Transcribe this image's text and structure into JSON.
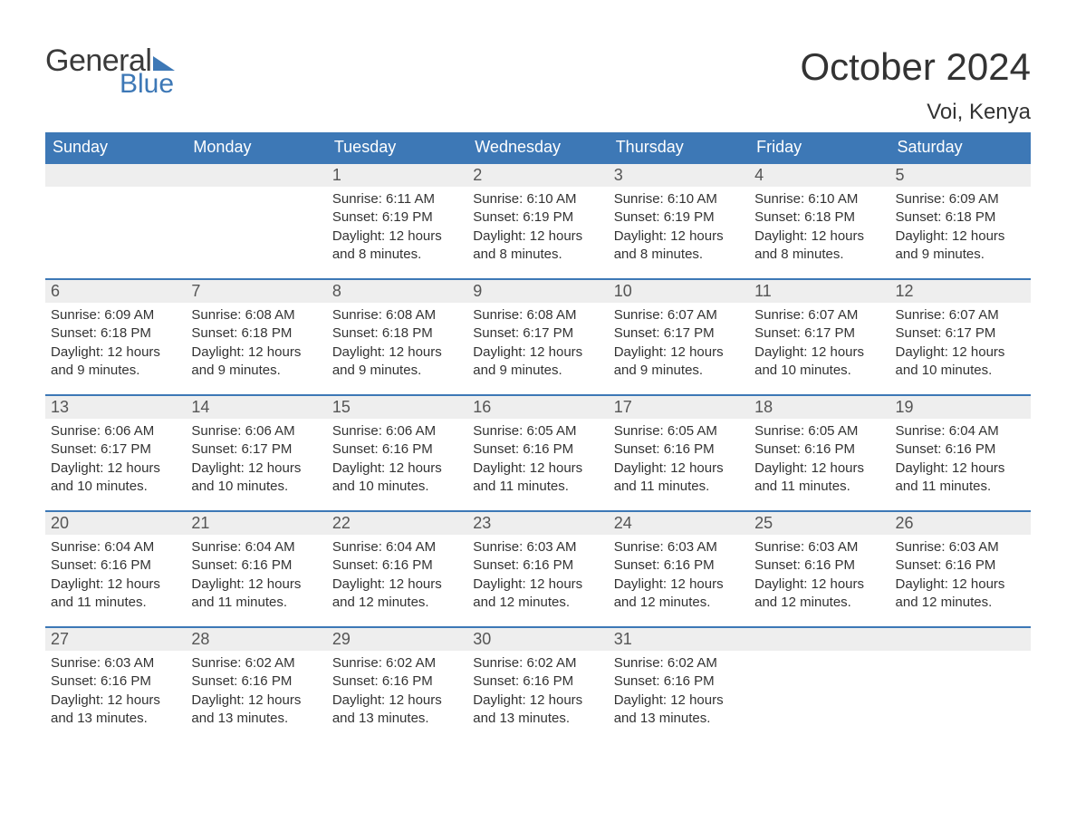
{
  "brand": {
    "word1": "General",
    "word2": "Blue",
    "accent_color": "#3d78b6",
    "text_color": "#3a3a3a"
  },
  "header": {
    "title": "October 2024",
    "location": "Voi, Kenya"
  },
  "calendar": {
    "columns": [
      "Sunday",
      "Monday",
      "Tuesday",
      "Wednesday",
      "Thursday",
      "Friday",
      "Saturday"
    ],
    "header_bg": "#3d78b6",
    "header_fg": "#ffffff",
    "daynum_bg": "#eeeeee",
    "row_border_color": "#3d78b6",
    "body_font_size": 15,
    "weeks": [
      [
        null,
        null,
        {
          "n": "1",
          "sunrise": "Sunrise: 6:11 AM",
          "sunset": "Sunset: 6:19 PM",
          "daylight": "Daylight: 12 hours and 8 minutes."
        },
        {
          "n": "2",
          "sunrise": "Sunrise: 6:10 AM",
          "sunset": "Sunset: 6:19 PM",
          "daylight": "Daylight: 12 hours and 8 minutes."
        },
        {
          "n": "3",
          "sunrise": "Sunrise: 6:10 AM",
          "sunset": "Sunset: 6:19 PM",
          "daylight": "Daylight: 12 hours and 8 minutes."
        },
        {
          "n": "4",
          "sunrise": "Sunrise: 6:10 AM",
          "sunset": "Sunset: 6:18 PM",
          "daylight": "Daylight: 12 hours and 8 minutes."
        },
        {
          "n": "5",
          "sunrise": "Sunrise: 6:09 AM",
          "sunset": "Sunset: 6:18 PM",
          "daylight": "Daylight: 12 hours and 9 minutes."
        }
      ],
      [
        {
          "n": "6",
          "sunrise": "Sunrise: 6:09 AM",
          "sunset": "Sunset: 6:18 PM",
          "daylight": "Daylight: 12 hours and 9 minutes."
        },
        {
          "n": "7",
          "sunrise": "Sunrise: 6:08 AM",
          "sunset": "Sunset: 6:18 PM",
          "daylight": "Daylight: 12 hours and 9 minutes."
        },
        {
          "n": "8",
          "sunrise": "Sunrise: 6:08 AM",
          "sunset": "Sunset: 6:18 PM",
          "daylight": "Daylight: 12 hours and 9 minutes."
        },
        {
          "n": "9",
          "sunrise": "Sunrise: 6:08 AM",
          "sunset": "Sunset: 6:17 PM",
          "daylight": "Daylight: 12 hours and 9 minutes."
        },
        {
          "n": "10",
          "sunrise": "Sunrise: 6:07 AM",
          "sunset": "Sunset: 6:17 PM",
          "daylight": "Daylight: 12 hours and 9 minutes."
        },
        {
          "n": "11",
          "sunrise": "Sunrise: 6:07 AM",
          "sunset": "Sunset: 6:17 PM",
          "daylight": "Daylight: 12 hours and 10 minutes."
        },
        {
          "n": "12",
          "sunrise": "Sunrise: 6:07 AM",
          "sunset": "Sunset: 6:17 PM",
          "daylight": "Daylight: 12 hours and 10 minutes."
        }
      ],
      [
        {
          "n": "13",
          "sunrise": "Sunrise: 6:06 AM",
          "sunset": "Sunset: 6:17 PM",
          "daylight": "Daylight: 12 hours and 10 minutes."
        },
        {
          "n": "14",
          "sunrise": "Sunrise: 6:06 AM",
          "sunset": "Sunset: 6:17 PM",
          "daylight": "Daylight: 12 hours and 10 minutes."
        },
        {
          "n": "15",
          "sunrise": "Sunrise: 6:06 AM",
          "sunset": "Sunset: 6:16 PM",
          "daylight": "Daylight: 12 hours and 10 minutes."
        },
        {
          "n": "16",
          "sunrise": "Sunrise: 6:05 AM",
          "sunset": "Sunset: 6:16 PM",
          "daylight": "Daylight: 12 hours and 11 minutes."
        },
        {
          "n": "17",
          "sunrise": "Sunrise: 6:05 AM",
          "sunset": "Sunset: 6:16 PM",
          "daylight": "Daylight: 12 hours and 11 minutes."
        },
        {
          "n": "18",
          "sunrise": "Sunrise: 6:05 AM",
          "sunset": "Sunset: 6:16 PM",
          "daylight": "Daylight: 12 hours and 11 minutes."
        },
        {
          "n": "19",
          "sunrise": "Sunrise: 6:04 AM",
          "sunset": "Sunset: 6:16 PM",
          "daylight": "Daylight: 12 hours and 11 minutes."
        }
      ],
      [
        {
          "n": "20",
          "sunrise": "Sunrise: 6:04 AM",
          "sunset": "Sunset: 6:16 PM",
          "daylight": "Daylight: 12 hours and 11 minutes."
        },
        {
          "n": "21",
          "sunrise": "Sunrise: 6:04 AM",
          "sunset": "Sunset: 6:16 PM",
          "daylight": "Daylight: 12 hours and 11 minutes."
        },
        {
          "n": "22",
          "sunrise": "Sunrise: 6:04 AM",
          "sunset": "Sunset: 6:16 PM",
          "daylight": "Daylight: 12 hours and 12 minutes."
        },
        {
          "n": "23",
          "sunrise": "Sunrise: 6:03 AM",
          "sunset": "Sunset: 6:16 PM",
          "daylight": "Daylight: 12 hours and 12 minutes."
        },
        {
          "n": "24",
          "sunrise": "Sunrise: 6:03 AM",
          "sunset": "Sunset: 6:16 PM",
          "daylight": "Daylight: 12 hours and 12 minutes."
        },
        {
          "n": "25",
          "sunrise": "Sunrise: 6:03 AM",
          "sunset": "Sunset: 6:16 PM",
          "daylight": "Daylight: 12 hours and 12 minutes."
        },
        {
          "n": "26",
          "sunrise": "Sunrise: 6:03 AM",
          "sunset": "Sunset: 6:16 PM",
          "daylight": "Daylight: 12 hours and 12 minutes."
        }
      ],
      [
        {
          "n": "27",
          "sunrise": "Sunrise: 6:03 AM",
          "sunset": "Sunset: 6:16 PM",
          "daylight": "Daylight: 12 hours and 13 minutes."
        },
        {
          "n": "28",
          "sunrise": "Sunrise: 6:02 AM",
          "sunset": "Sunset: 6:16 PM",
          "daylight": "Daylight: 12 hours and 13 minutes."
        },
        {
          "n": "29",
          "sunrise": "Sunrise: 6:02 AM",
          "sunset": "Sunset: 6:16 PM",
          "daylight": "Daylight: 12 hours and 13 minutes."
        },
        {
          "n": "30",
          "sunrise": "Sunrise: 6:02 AM",
          "sunset": "Sunset: 6:16 PM",
          "daylight": "Daylight: 12 hours and 13 minutes."
        },
        {
          "n": "31",
          "sunrise": "Sunrise: 6:02 AM",
          "sunset": "Sunset: 6:16 PM",
          "daylight": "Daylight: 12 hours and 13 minutes."
        },
        null,
        null
      ]
    ]
  }
}
